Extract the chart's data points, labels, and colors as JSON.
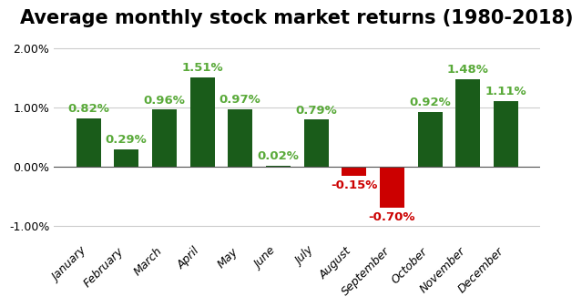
{
  "title": "Average monthly stock market returns (1980-2018)",
  "months": [
    "January",
    "February",
    "March",
    "April",
    "May",
    "June",
    "July",
    "August",
    "September",
    "October",
    "November",
    "December"
  ],
  "values": [
    0.82,
    0.29,
    0.96,
    1.51,
    0.97,
    0.02,
    0.79,
    -0.15,
    -0.7,
    0.92,
    1.48,
    1.11
  ],
  "labels": [
    "0.82%",
    "0.29%",
    "0.96%",
    "1.51%",
    "0.97%",
    "0.02%",
    "0.79%",
    "-0.15%",
    "-0.70%",
    "0.92%",
    "1.48%",
    "1.11%"
  ],
  "bar_color_pos": "#1a5c1a",
  "bar_color_neg": "#cc0000",
  "label_color_pos": "#5aaa3a",
  "label_color_neg": "#cc0000",
  "ylim": [
    -1.25,
    2.2
  ],
  "yticks": [
    -1.0,
    0.0,
    1.0,
    2.0
  ],
  "ytick_labels": [
    "-1.00%",
    "0.00%",
    "1.00%",
    "2.00%"
  ],
  "background_color": "#ffffff",
  "title_fontsize": 15,
  "tick_fontsize": 9,
  "label_fontsize": 9.5,
  "bar_width": 0.65
}
